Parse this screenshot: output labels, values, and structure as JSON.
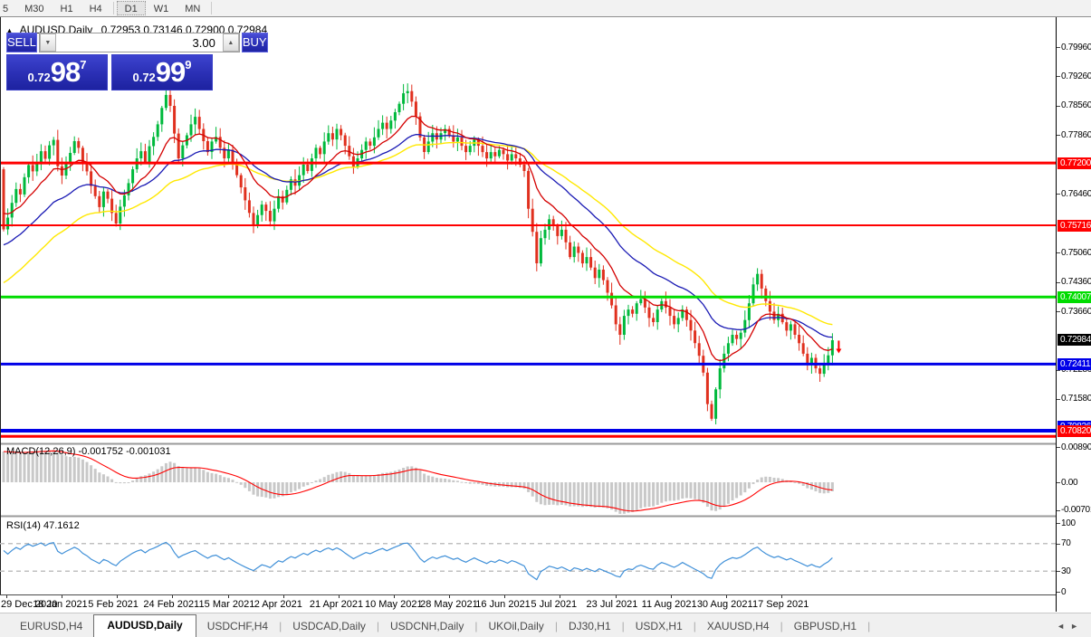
{
  "toolbar": {
    "timeframes": [
      "5",
      "M30",
      "H1",
      "H4",
      "D1",
      "W1",
      "MN"
    ],
    "active": "D1"
  },
  "chart_header": {
    "symbol_label": "AUDUSD,Daily",
    "ohlc_text": "0.72953 0.73146 0.72900 0.72984"
  },
  "icons": {
    "collapse": "▲",
    "spinner_up": "▲",
    "spinner_down": "▼",
    "tabs_left": "◄",
    "tabs_right": "►"
  },
  "trade_panel": {
    "sell_label": "SELL",
    "buy_label": "BUY",
    "volume": "3.00",
    "sell_price": {
      "prefix": "0.72",
      "big": "98",
      "sup": "7"
    },
    "buy_price": {
      "prefix": "0.72",
      "big": "99",
      "sup": "9"
    }
  },
  "panes": {
    "macd_label": "MACD(12,26,9) -0.001752 -0.001031",
    "rsi_label": "RSI(14) 47.1612"
  },
  "price_axis": {
    "ticks": [
      "0.79960",
      "0.79260",
      "0.78560",
      "0.77860",
      "0.76460",
      "0.75060",
      "0.74360",
      "0.73660",
      "0.72280",
      "0.71580"
    ],
    "badges": [
      {
        "text": "0.77200",
        "value": 0.772,
        "bg": "#FF0000",
        "fg": "#FFFFFF"
      },
      {
        "text": "0.75716",
        "value": 0.75716,
        "bg": "#FF0000",
        "fg": "#FFFFFF"
      },
      {
        "text": "0.74007",
        "value": 0.74007,
        "bg": "#00DC00",
        "fg": "#FFFFFF"
      },
      {
        "text": "0.72984",
        "value": 0.72984,
        "bg": "#000000",
        "fg": "#FFFFFF"
      },
      {
        "text": "0.72411",
        "value": 0.72411,
        "bg": "#0000E8",
        "fg": "#FFFFFF"
      },
      {
        "text": "0.70826",
        "value": 0.70826,
        "bg": "#0000E8",
        "fg": "#FFFFFF",
        "dy": -5
      },
      {
        "text": "0.70820",
        "value": 0.7082,
        "bg": "#FF0000",
        "fg": "#FFFFFF"
      }
    ],
    "macd_ticks": [
      "0.008904",
      "0.00",
      "-0.00701"
    ],
    "rsi_ticks": [
      "100",
      "70",
      "30",
      "0"
    ]
  },
  "tabs": {
    "items": [
      "EURUSD,H4",
      "AUDUSD,Daily",
      "USDCHF,H4",
      "USDCAD,Daily",
      "USDCNH,Daily",
      "UKOil,Daily",
      "DJ30,H1",
      "USDX,H1",
      "XAUUSD,H4",
      "GBPUSD,H1"
    ],
    "active": "AUDUSD,Daily"
  },
  "colors": {
    "up_candle": "#00B93C",
    "down_candle": "#E0301E",
    "ma_fast_red": "#D40000",
    "ma_mid_blue": "#1A1AB4",
    "ma_slow_yellow": "#FFE800",
    "macd_hist": "#C8C8C8",
    "macd_signal": "#FF0000",
    "rsi_line": "#4090D8",
    "level_red": "#FF0000",
    "level_green": "#00DC00",
    "level_blue": "#0000E8",
    "panel_blue": "#2A2FB4"
  },
  "chart_data": {
    "type": "candlestick",
    "symbol": "AUDUSD",
    "timeframe": "Daily",
    "ohlc_header": {
      "open": 0.72953,
      "high": 0.73146,
      "low": 0.729,
      "close": 0.72984
    },
    "bid": 0.72987,
    "ask": 0.72999,
    "last_close": 0.72984,
    "x_tick_labels": [
      "29 Dec 2020",
      "18 Jan 2021",
      "5 Feb 2021",
      "24 Feb 2021",
      "15 Mar 2021",
      "2 Apr 2021",
      "21 Apr 2021",
      "10 May 2021",
      "28 May 2021",
      "16 Jun 2021",
      "5 Jul 2021",
      "23 Jul 2021",
      "11 Aug 2021",
      "30 Aug 2021",
      "17 Sep 2021"
    ],
    "y_range": [
      0.706,
      0.801
    ],
    "closes": [
      0.7562,
      0.759,
      0.7625,
      0.7658,
      0.7645,
      0.7686,
      0.7715,
      0.77,
      0.7722,
      0.7748,
      0.773,
      0.7762,
      0.7775,
      0.7712,
      0.769,
      0.7718,
      0.7744,
      0.7772,
      0.7756,
      0.7722,
      0.77,
      0.7665,
      0.7641,
      0.7615,
      0.7652,
      0.7635,
      0.7601,
      0.7576,
      0.7616,
      0.7643,
      0.7672,
      0.7705,
      0.7731,
      0.7748,
      0.7722,
      0.776,
      0.7782,
      0.7812,
      0.7851,
      0.7882,
      0.7856,
      0.779,
      0.7731,
      0.7762,
      0.7786,
      0.7812,
      0.783,
      0.7801,
      0.7772,
      0.7746,
      0.7771,
      0.7782,
      0.7756,
      0.7731,
      0.7752,
      0.7722,
      0.7691,
      0.7662,
      0.7631,
      0.7601,
      0.7572,
      0.7596,
      0.7621,
      0.7606,
      0.7581,
      0.7611,
      0.7641,
      0.7626,
      0.7656,
      0.7681,
      0.7666,
      0.7691,
      0.7716,
      0.7701,
      0.7731,
      0.7756,
      0.7741,
      0.7771,
      0.7791,
      0.7776,
      0.7801,
      0.7786,
      0.7761,
      0.7736,
      0.7711,
      0.7731,
      0.7751,
      0.7771,
      0.7761,
      0.7781,
      0.7801,
      0.7816,
      0.7801,
      0.7821,
      0.7841,
      0.7861,
      0.7886,
      0.7891,
      0.7866,
      0.7831,
      0.7781,
      0.7746,
      0.7771,
      0.7791,
      0.7776,
      0.7791,
      0.7801,
      0.7786,
      0.7771,
      0.7781,
      0.7761,
      0.7746,
      0.7761,
      0.7776,
      0.7761,
      0.7746,
      0.7731,
      0.7746,
      0.7736,
      0.7751,
      0.7741,
      0.7726,
      0.7741,
      0.7731,
      0.7716,
      0.7701,
      0.7611,
      0.7556,
      0.7481,
      0.7541,
      0.7561,
      0.7586,
      0.7571,
      0.7546,
      0.7561,
      0.7531,
      0.7496,
      0.7521,
      0.7506,
      0.7481,
      0.7496,
      0.7471,
      0.7446,
      0.7466,
      0.7441,
      0.7411,
      0.7381,
      0.7336,
      0.7311,
      0.7356,
      0.7371,
      0.7361,
      0.7386,
      0.7396,
      0.7376,
      0.7351,
      0.7341,
      0.7371,
      0.7391,
      0.7376,
      0.7356,
      0.7336,
      0.7351,
      0.7371,
      0.7346,
      0.7321,
      0.7291,
      0.7261,
      0.7221,
      0.7146,
      0.7111,
      0.7181,
      0.7231,
      0.7266,
      0.7291,
      0.7311,
      0.7301,
      0.7316,
      0.7346,
      0.7386,
      0.7431,
      0.7456,
      0.7421,
      0.7391,
      0.7366,
      0.7346,
      0.7361,
      0.7341,
      0.7321,
      0.7336,
      0.7311,
      0.7291,
      0.7266,
      0.7241,
      0.7256,
      0.7231,
      0.7218,
      0.7242,
      0.7262,
      0.7298
    ],
    "moving_averages": [
      {
        "name": "fast",
        "color": "#D40000"
      },
      {
        "name": "medium",
        "color": "#1A1AB4"
      },
      {
        "name": "slow",
        "color": "#FFE800"
      }
    ],
    "levels": [
      {
        "price": 0.772,
        "color": "#FF0000",
        "width": 3
      },
      {
        "price": 0.75716,
        "color": "#FF0000",
        "width": 2
      },
      {
        "price": 0.74007,
        "color": "#00DC00",
        "width": 3
      },
      {
        "price": 0.72411,
        "color": "#0000E8",
        "width": 3
      },
      {
        "price": 0.70826,
        "color": "#0000E8",
        "width": 4
      },
      {
        "price": 0.7082,
        "color": "#FF0000",
        "width": 3,
        "dy": 6
      }
    ],
    "trade_marker": {
      "type": "sell-arrow",
      "price": 0.7282,
      "color": "#FF0000"
    },
    "indicators": {
      "macd": {
        "params": [
          12,
          26,
          9
        ],
        "current_values": [
          -0.001752,
          -0.001031
        ],
        "axis": {
          "top": 0.008904,
          "zero": 0.0,
          "bottom": -0.00701
        }
      },
      "rsi": {
        "period": 14,
        "current_value": 47.1612,
        "levels": [
          70,
          30
        ],
        "axis": [
          100,
          70,
          30,
          0
        ]
      }
    }
  }
}
